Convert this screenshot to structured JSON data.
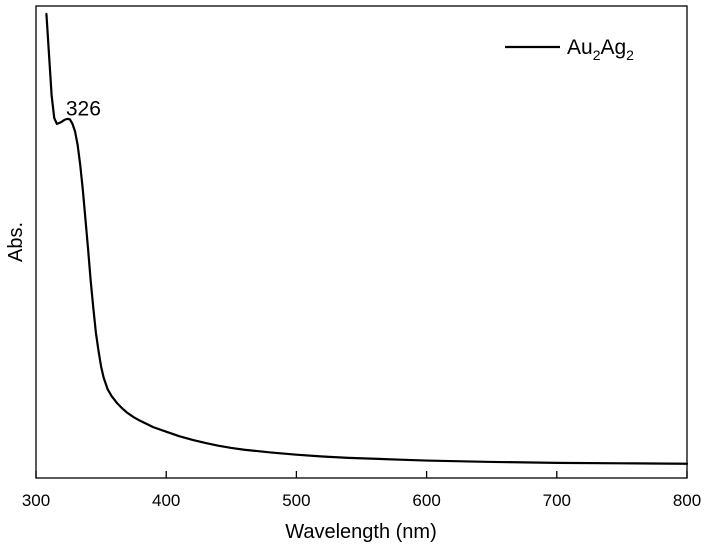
{
  "chart_data": {
    "type": "line",
    "title": "",
    "xlabel": "Wavelength (nm)",
    "ylabel": "Abs.",
    "xlim": [
      300,
      800
    ],
    "ylim": [
      0,
      1
    ],
    "x_ticks": [
      300,
      400,
      500,
      600,
      700,
      800
    ],
    "x_tick_labels": [
      "300",
      "400",
      "500",
      "600",
      "700",
      "800"
    ],
    "y_tick_labels_shown": false,
    "grid": false,
    "legend": {
      "placement": "top-right",
      "entries": [
        "Au2Ag2"
      ]
    },
    "annotations": [
      {
        "text": "326",
        "x": 326
      }
    ],
    "series": [
      {
        "name": "Au2Ag2",
        "color": "#000000",
        "x": [
          308,
          310,
          312,
          314,
          316,
          318,
          320,
          322,
          324,
          326,
          328,
          330,
          332,
          334,
          336,
          338,
          340,
          342,
          344,
          346,
          348,
          350,
          352,
          355,
          358,
          362,
          366,
          370,
          375,
          380,
          390,
          400,
          410,
          420,
          430,
          440,
          450,
          460,
          470,
          480,
          500,
          520,
          540,
          560,
          580,
          600,
          650,
          700,
          750,
          800
        ],
        "y": [
          1.0,
          0.91,
          0.82,
          0.77,
          0.757,
          0.759,
          0.762,
          0.766,
          0.768,
          0.767,
          0.757,
          0.74,
          0.71,
          0.665,
          0.61,
          0.545,
          0.48,
          0.41,
          0.35,
          0.295,
          0.255,
          0.22,
          0.195,
          0.17,
          0.155,
          0.14,
          0.128,
          0.118,
          0.108,
          0.1,
          0.086,
          0.076,
          0.066,
          0.058,
          0.051,
          0.045,
          0.04,
          0.036,
          0.033,
          0.03,
          0.025,
          0.021,
          0.018,
          0.016,
          0.014,
          0.012,
          0.009,
          0.007,
          0.006,
          0.005
        ]
      }
    ]
  }
}
